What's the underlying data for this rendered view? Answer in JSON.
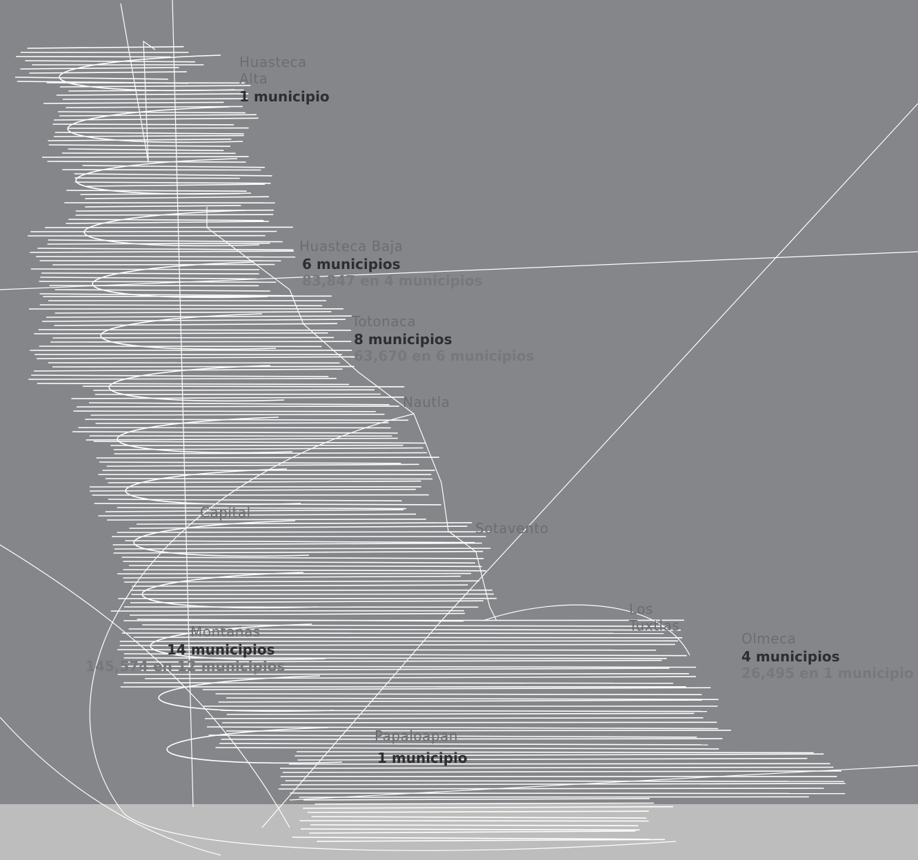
{
  "map": {
    "regions": [
      {
        "id": "huasteca-alta",
        "name": "Huasteca Alta",
        "count": "1 municipio",
        "sub": ""
      },
      {
        "id": "huasteca-baja",
        "name": "Huasteca Baja",
        "count": "6 municipios",
        "sub": "83,847 en 4 municipios"
      },
      {
        "id": "totonaca",
        "name": "Totonaca",
        "count": "8 municipios",
        "sub": "63,670 en 6 municipios"
      },
      {
        "id": "nautla",
        "name": "Nautla",
        "count": "",
        "sub": ""
      },
      {
        "id": "capital",
        "name": "Capital",
        "count": "",
        "sub": ""
      },
      {
        "id": "sotavento",
        "name": "Sotavento",
        "count": "",
        "sub": ""
      },
      {
        "id": "los-tuxtlas",
        "name": "Los Tuxtlas",
        "count": "",
        "sub": ""
      },
      {
        "id": "olmeca",
        "name": "Olmeca",
        "count": "4 municipios",
        "sub": "26,495 en 1 municipio"
      },
      {
        "id": "montanas",
        "name": "Montañas",
        "count": "14 municipios",
        "sub": "145,574 en 12 municipios"
      },
      {
        "id": "papaloapan",
        "name": "Papaloapan",
        "count": "1 municipio",
        "sub": ""
      }
    ],
    "colors": {
      "background": "#858689",
      "band": "#bdbdbe",
      "outline": "#ffffff",
      "region_name": "#6c6d70",
      "count": "#2e2e30",
      "sub": "#77787b"
    }
  }
}
